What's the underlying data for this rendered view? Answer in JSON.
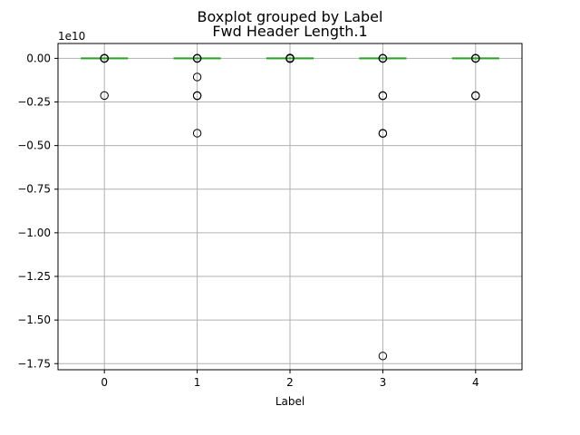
{
  "chart_data": {
    "type": "boxplot",
    "suptitle": "Boxplot grouped by Label",
    "title": "Fwd Header Length.1",
    "xlabel": "Label",
    "ylabel": "",
    "offset_text": "1e10",
    "categories": [
      "0",
      "1",
      "2",
      "3",
      "4"
    ],
    "xlim": [
      0.5,
      5.5
    ],
    "ylim": [
      -1.785,
      0.085
    ],
    "y_scale_factor": 10000000000,
    "yticks": [
      0.0,
      -0.25,
      -0.5,
      -0.75,
      -1.0,
      -1.25,
      -1.5,
      -1.75
    ],
    "ytick_labels": [
      "0.00",
      "−0.25",
      "−0.50",
      "−0.75",
      "−1.00",
      "−1.25",
      "−1.50",
      "−1.75"
    ],
    "grid": true,
    "box_color": "#2ca02c",
    "median_color": "#2ca02c",
    "outlier_color": "#000000",
    "boxes": [
      {
        "label": "0",
        "q1": 0,
        "median": 0,
        "q3": 0,
        "whisker_low": 0,
        "whisker_high": 0,
        "outliers": [
          -0.001,
          0.0,
          0.001,
          -0.0005,
          -0.213
        ]
      },
      {
        "label": "1",
        "q1": 0,
        "median": 0,
        "q3": 0,
        "whisker_low": 0,
        "whisker_high": 0,
        "outliers": [
          -0.001,
          0.0,
          0.001,
          -0.107,
          -0.213,
          -0.215,
          -0.429
        ]
      },
      {
        "label": "2",
        "q1": 0,
        "median": 0,
        "q3": 0,
        "whisker_low": 0,
        "whisker_high": 0,
        "outliers": [
          -0.001,
          0.0,
          0.001,
          0.002,
          -0.002
        ]
      },
      {
        "label": "3",
        "q1": 0,
        "median": 0,
        "q3": 0,
        "whisker_low": 0,
        "whisker_high": 0,
        "outliers": [
          -0.001,
          0.0,
          0.001,
          -0.213,
          -0.215,
          -0.429,
          -0.431,
          -1.706
        ]
      },
      {
        "label": "4",
        "q1": 0,
        "median": 0,
        "q3": 0,
        "whisker_low": 0,
        "whisker_high": 0,
        "outliers": [
          -0.001,
          0.0,
          0.001,
          -0.213,
          -0.215
        ]
      }
    ]
  }
}
